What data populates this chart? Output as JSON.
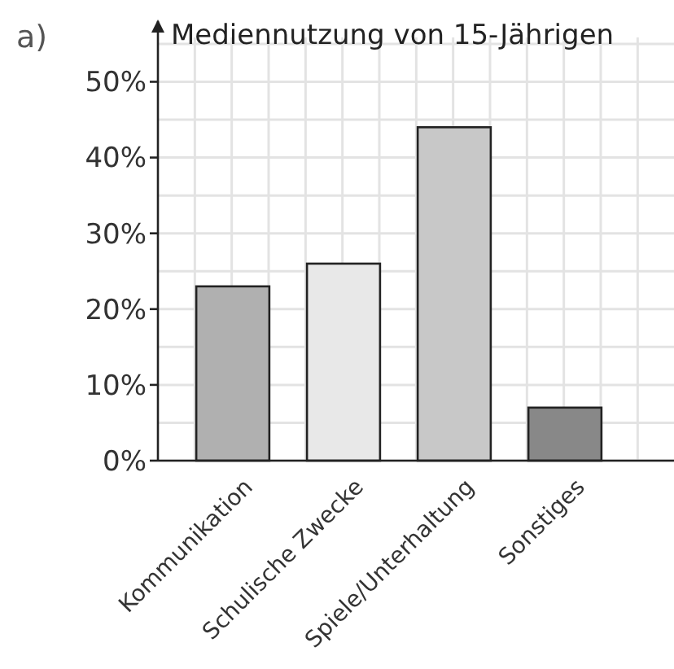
{
  "chart_data": {
    "type": "bar",
    "title": "Mediennutzung von 15-Jährigen",
    "annotations": [
      "a)"
    ],
    "categories": [
      "Kommunikation",
      "Schulische Zwecke",
      "Spiele/Unterhaltung",
      "Sonstiges"
    ],
    "values": [
      23,
      26,
      44,
      7
    ],
    "colors": [
      "#b0b0b0",
      "#e8e8e8",
      "#c8c8c8",
      "#888888"
    ],
    "ylim": [
      0,
      58
    ],
    "yticks": [
      {
        "value": 0,
        "label": "0%"
      },
      {
        "value": 5,
        "label": null
      },
      {
        "value": 10,
        "label": "10%"
      },
      {
        "value": 15,
        "label": null
      },
      {
        "value": 20,
        "label": "20%"
      },
      {
        "value": 25,
        "label": null
      },
      {
        "value": 30,
        "label": "30%"
      },
      {
        "value": 35,
        "label": null
      },
      {
        "value": 40,
        "label": "40%"
      },
      {
        "value": 45,
        "label": null
      },
      {
        "value": 50,
        "label": "50%"
      },
      {
        "value": 55,
        "label": null
      }
    ],
    "grid": true
  }
}
